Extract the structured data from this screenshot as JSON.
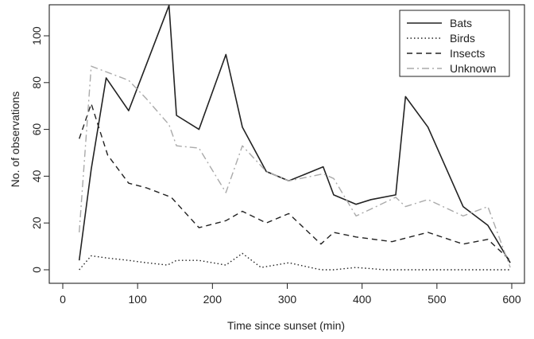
{
  "chart_data": {
    "type": "line",
    "title": "",
    "xlabel": "Time since sunset (min)",
    "ylabel": "No. of observations",
    "xlim": [
      0,
      600
    ],
    "ylim": [
      0,
      110
    ],
    "xticks": [
      0,
      100,
      200,
      300,
      400,
      500,
      600
    ],
    "yticks": [
      0,
      20,
      40,
      60,
      80,
      100
    ],
    "grid": false,
    "legend_position": "top-right",
    "series": [
      {
        "name": "Bats",
        "style": "solid",
        "color": "#222222",
        "points": [
          [
            22,
            4
          ],
          [
            38,
            43
          ],
          [
            58,
            82
          ],
          [
            88,
            68
          ],
          [
            112,
            88
          ],
          [
            142,
            113
          ],
          [
            152,
            66
          ],
          [
            182,
            60
          ],
          [
            218,
            92
          ],
          [
            240,
            61
          ],
          [
            272,
            42
          ],
          [
            302,
            38
          ],
          [
            348,
            44
          ],
          [
            362,
            32
          ],
          [
            392,
            28
          ],
          [
            412,
            30
          ],
          [
            445,
            32
          ],
          [
            458,
            74
          ],
          [
            488,
            61
          ],
          [
            535,
            27
          ],
          [
            568,
            19
          ],
          [
            598,
            3
          ]
        ]
      },
      {
        "name": "Birds",
        "style": "dotted",
        "color": "#222222",
        "points": [
          [
            22,
            0
          ],
          [
            38,
            6
          ],
          [
            60,
            5
          ],
          [
            88,
            4
          ],
          [
            112,
            3
          ],
          [
            140,
            2
          ],
          [
            152,
            4
          ],
          [
            182,
            4
          ],
          [
            218,
            2
          ],
          [
            240,
            7
          ],
          [
            265,
            1
          ],
          [
            302,
            3
          ],
          [
            345,
            0
          ],
          [
            362,
            0
          ],
          [
            392,
            1
          ],
          [
            430,
            0
          ],
          [
            460,
            0
          ],
          [
            500,
            0
          ],
          [
            540,
            0
          ],
          [
            570,
            0
          ],
          [
            598,
            0
          ]
        ]
      },
      {
        "name": "Insects",
        "style": "dashed",
        "color": "#222222",
        "points": [
          [
            22,
            56
          ],
          [
            38,
            71
          ],
          [
            60,
            49
          ],
          [
            88,
            37
          ],
          [
            112,
            35
          ],
          [
            145,
            31
          ],
          [
            182,
            18
          ],
          [
            218,
            21
          ],
          [
            240,
            25
          ],
          [
            272,
            20
          ],
          [
            302,
            24
          ],
          [
            345,
            11
          ],
          [
            362,
            16
          ],
          [
            392,
            14
          ],
          [
            440,
            12
          ],
          [
            488,
            16
          ],
          [
            535,
            11
          ],
          [
            568,
            13
          ],
          [
            598,
            4
          ]
        ]
      },
      {
        "name": "Unknown",
        "style": "dashdot",
        "color": "#aaaaaa",
        "points": [
          [
            22,
            16
          ],
          [
            38,
            87
          ],
          [
            88,
            81
          ],
          [
            112,
            73
          ],
          [
            142,
            62
          ],
          [
            152,
            53
          ],
          [
            182,
            52
          ],
          [
            218,
            33
          ],
          [
            240,
            53
          ],
          [
            272,
            42
          ],
          [
            302,
            38
          ],
          [
            348,
            41
          ],
          [
            362,
            39
          ],
          [
            392,
            23
          ],
          [
            412,
            26
          ],
          [
            445,
            31
          ],
          [
            458,
            27
          ],
          [
            488,
            30
          ],
          [
            535,
            23
          ],
          [
            568,
            27
          ],
          [
            598,
            1
          ]
        ]
      }
    ]
  }
}
